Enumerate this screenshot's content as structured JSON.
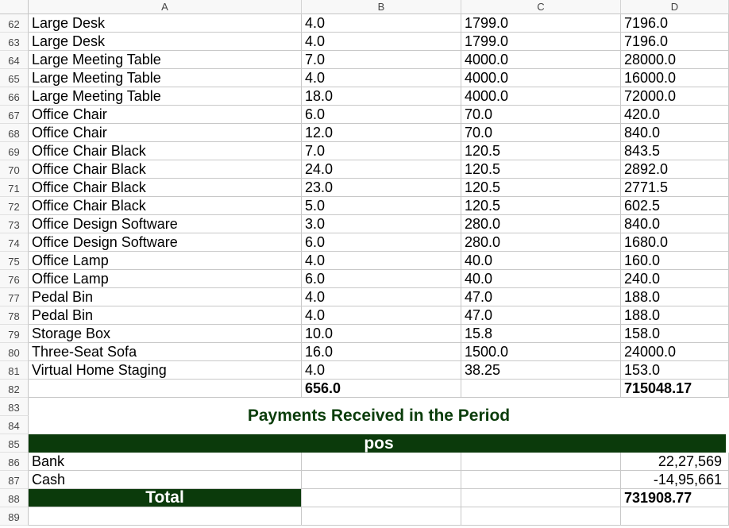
{
  "columns": [
    "A",
    "B",
    "C",
    "D"
  ],
  "rows": [
    {
      "n": "62",
      "a": "Large Desk",
      "b": "4.0",
      "c": "1799.0",
      "d": "7196.0"
    },
    {
      "n": "63",
      "a": "Large Desk",
      "b": "4.0",
      "c": "1799.0",
      "d": "7196.0"
    },
    {
      "n": "64",
      "a": "Large Meeting Table",
      "b": "7.0",
      "c": "4000.0",
      "d": "28000.0"
    },
    {
      "n": "65",
      "a": "Large Meeting Table",
      "b": "4.0",
      "c": "4000.0",
      "d": "16000.0"
    },
    {
      "n": "66",
      "a": "Large Meeting Table",
      "b": "18.0",
      "c": "4000.0",
      "d": "72000.0"
    },
    {
      "n": "67",
      "a": "Office Chair",
      "b": "6.0",
      "c": "70.0",
      "d": "420.0"
    },
    {
      "n": "68",
      "a": "Office Chair",
      "b": "12.0",
      "c": "70.0",
      "d": "840.0"
    },
    {
      "n": "69",
      "a": "Office Chair Black",
      "b": "7.0",
      "c": "120.5",
      "d": "843.5"
    },
    {
      "n": "70",
      "a": "Office Chair Black",
      "b": "24.0",
      "c": "120.5",
      "d": "2892.0"
    },
    {
      "n": "71",
      "a": "Office Chair Black",
      "b": "23.0",
      "c": "120.5",
      "d": "2771.5"
    },
    {
      "n": "72",
      "a": "Office Chair Black",
      "b": "5.0",
      "c": "120.5",
      "d": "602.5"
    },
    {
      "n": "73",
      "a": "Office Design Software",
      "b": "3.0",
      "c": "280.0",
      "d": "840.0"
    },
    {
      "n": "74",
      "a": "Office Design Software",
      "b": "6.0",
      "c": "280.0",
      "d": "1680.0"
    },
    {
      "n": "75",
      "a": "Office Lamp",
      "b": "4.0",
      "c": "40.0",
      "d": "160.0"
    },
    {
      "n": "76",
      "a": "Office Lamp",
      "b": "6.0",
      "c": "40.0",
      "d": "240.0"
    },
    {
      "n": "77",
      "a": "Pedal Bin",
      "b": "4.0",
      "c": "47.0",
      "d": "188.0"
    },
    {
      "n": "78",
      "a": "Pedal Bin",
      "b": "4.0",
      "c": "47.0",
      "d": "188.0"
    },
    {
      "n": "79",
      "a": "Storage Box",
      "b": "10.0",
      "c": "15.8",
      "d": "158.0"
    },
    {
      "n": "80",
      "a": "Three-Seat Sofa",
      "b": "16.0",
      "c": "1500.0",
      "d": "24000.0"
    },
    {
      "n": "81",
      "a": "Virtual Home Staging",
      "b": "4.0",
      "c": "38.25",
      "d": "153.0"
    }
  ],
  "subtotal": {
    "n": "82",
    "a": "",
    "b": "656.0",
    "c": "",
    "d": "715048.17"
  },
  "payments": {
    "row_numbers": [
      "83",
      "84"
    ],
    "title": "Payments Received in the Period",
    "header_row": "85",
    "header_label": "pos",
    "items": [
      {
        "n": "86",
        "label": "Bank",
        "amount": "22,27,569"
      },
      {
        "n": "87",
        "label": "Cash",
        "amount": "-14,95,661"
      }
    ],
    "total_row": "88",
    "total_label": "Total",
    "total_value": "731908.77"
  },
  "empty_row": "89",
  "colors": {
    "accent_dark_green": "#0b3a0b",
    "title_green": "#0b3d0b"
  }
}
